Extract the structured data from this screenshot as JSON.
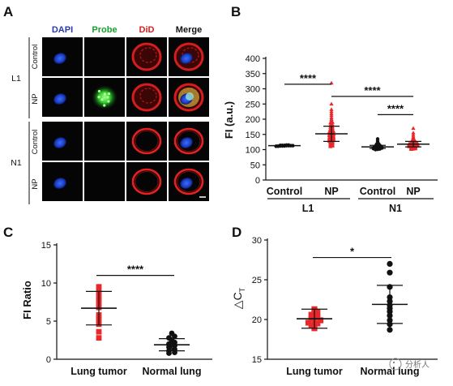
{
  "panel_a": {
    "letter": "A",
    "columns": [
      {
        "label": "DAPI",
        "color": "#2b3aa8"
      },
      {
        "label": "Probe",
        "color": "#17a02c"
      },
      {
        "label": "DiD",
        "color": "#d42121"
      },
      {
        "label": "Merge",
        "color": "#111111"
      }
    ],
    "groups": [
      {
        "label": "L1",
        "rows": [
          "Control",
          "NP"
        ]
      },
      {
        "label": "N1",
        "rows": [
          "Control",
          "NP"
        ]
      }
    ]
  },
  "chart_data": [
    {
      "panel": "B",
      "type": "scatter",
      "ylabel": "FI (a.u.)",
      "ylim": [
        0,
        400
      ],
      "yticks": [
        0,
        50,
        100,
        150,
        200,
        250,
        300,
        350,
        400
      ],
      "categories": [
        "Control",
        "NP",
        "Control",
        "NP"
      ],
      "groups": [
        "L1",
        "N1"
      ],
      "series": [
        {
          "category": "Control",
          "group": "L1",
          "color": "#111111",
          "mean": 113,
          "sd": 2,
          "values": [
            111,
            112,
            112,
            113,
            113,
            114,
            114,
            115,
            112,
            113,
            114,
            111,
            115,
            113
          ]
        },
        {
          "category": "NP",
          "group": "L1",
          "color": "#e8282b",
          "mean": 152,
          "sd": 25,
          "values": [
            319,
            250,
            232,
            225,
            218,
            212,
            205,
            200,
            196,
            192,
            188,
            184,
            180,
            177,
            174,
            171,
            168,
            165,
            162,
            160,
            158,
            156,
            154,
            152,
            150,
            148,
            146,
            144,
            142,
            140,
            138,
            136,
            134,
            132,
            130,
            128,
            126,
            124,
            122,
            120,
            118,
            116,
            114,
            112,
            110,
            158,
            162,
            148,
            143,
            137,
            133,
            129,
            125,
            170,
            166,
            175,
            182,
            190,
            141,
            151
          ]
        },
        {
          "category": "Control",
          "group": "N1",
          "color": "#111111",
          "mean": 109,
          "sd": 5,
          "values": [
            135,
            128,
            122,
            118,
            116,
            114,
            112,
            111,
            110,
            109,
            108,
            107,
            106,
            105,
            104,
            103,
            102,
            101,
            100,
            112,
            115,
            108,
            106,
            119,
            104,
            103,
            110
          ]
        },
        {
          "category": "NP",
          "group": "N1",
          "color": "#e8282b",
          "mean": 118,
          "sd": 9,
          "values": [
            170,
            155,
            148,
            142,
            138,
            135,
            132,
            130,
            128,
            126,
            124,
            122,
            121,
            120,
            119,
            118,
            117,
            116,
            115,
            114,
            113,
            112,
            111,
            110,
            109,
            108,
            107,
            106,
            105,
            104,
            103,
            102,
            101,
            118,
            120,
            123,
            116,
            113,
            119,
            127,
            131,
            110,
            112,
            115,
            125
          ]
        }
      ],
      "significance": [
        {
          "label": "****",
          "from": 0,
          "to": 1,
          "y": 315
        },
        {
          "label": "****",
          "from": 1,
          "to": 3,
          "y": 275
        },
        {
          "label": "****",
          "from": 2,
          "to": 3,
          "y": 215
        }
      ]
    },
    {
      "panel": "C",
      "type": "scatter",
      "ylabel": "FI Ratio",
      "ylim": [
        0,
        15
      ],
      "yticks": [
        0,
        5,
        10,
        15
      ],
      "categories": [
        "Lung tumor",
        "Normal lung"
      ],
      "series": [
        {
          "category": "Lung tumor",
          "color": "#e8282b",
          "marker": "square",
          "mean": 6.7,
          "sd": 2.2,
          "values": [
            9.5,
            8.8,
            8.2,
            7.8,
            7.4,
            6.8,
            5.8,
            5.2,
            4.6,
            3.6,
            2.8
          ]
        },
        {
          "category": "Normal lung",
          "color": "#111111",
          "marker": "circle",
          "mean": 1.9,
          "sd": 0.8,
          "values": [
            3.4,
            3.0,
            2.8,
            2.5,
            2.2,
            2.0,
            1.8,
            1.6,
            1.3,
            1.1,
            0.9,
            0.8
          ]
        }
      ],
      "significance": [
        {
          "label": "****",
          "from": 0,
          "to": 1,
          "y": 11
        }
      ]
    },
    {
      "panel": "D",
      "type": "scatter",
      "ylabel": "△C",
      "ylabel_subscript": "T",
      "ylim": [
        15,
        30
      ],
      "yticks": [
        15,
        20,
        25,
        30
      ],
      "categories": [
        "Lung tumor",
        "Normal lung"
      ],
      "series": [
        {
          "category": "Lung tumor",
          "color": "#e8282b",
          "marker": "square",
          "mean": 20.1,
          "sd": 1.2,
          "values": [
            21.3,
            21.0,
            20.9,
            20.6,
            20.3,
            20.1,
            19.9,
            19.6,
            19.5,
            19.3,
            18.9,
            19.9
          ]
        },
        {
          "category": "Normal lung",
          "color": "#111111",
          "marker": "circle",
          "mean": 21.9,
          "sd": 2.4,
          "values": [
            27.0,
            25.9,
            24.1,
            22.8,
            22.3,
            21.8,
            21.4,
            21.0,
            20.5,
            19.9,
            19.4,
            18.7
          ]
        }
      ],
      "significance": [
        {
          "label": "*",
          "from": 0,
          "to": 1,
          "y": 27.8
        }
      ]
    }
  ],
  "watermark": "分析人",
  "colors": {
    "red": "#e8282b",
    "black": "#111111"
  }
}
